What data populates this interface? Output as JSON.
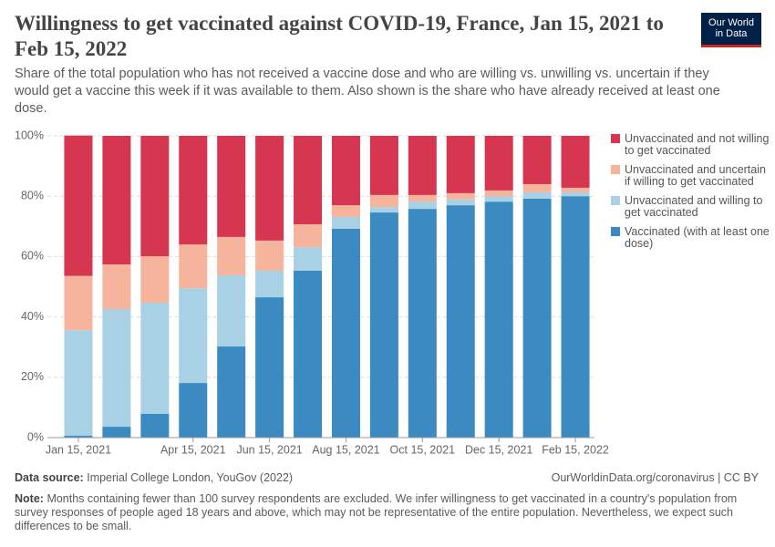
{
  "chart_data": {
    "type": "stacked-bar",
    "title": "Willingness to get vaccinated against COVID-19, France, Jan 15, 2021 to Feb 15, 2022",
    "subtitle": "Share of the total population who has not received a vaccine dose and who are willing vs. unwilling vs. uncertain if they would get a vaccine this week if it was available to them. Also shown is the share who have already received at least one dose.",
    "logo": [
      "Our World",
      "in Data"
    ],
    "categories": [
      "Jan 15, 2021",
      null,
      null,
      "Apr 15, 2021",
      null,
      "Jun 15, 2021",
      null,
      "Aug 15, 2021",
      null,
      "Oct 15, 2021",
      null,
      "Dec 15, 2021",
      null,
      "Feb 15, 2022"
    ],
    "series": [
      {
        "name": "Vaccinated (with at least one dose)",
        "color": "#3b8bc2",
        "values": [
          0.6,
          3.6,
          7.9,
          18.1,
          30.2,
          46.5,
          55.3,
          69.2,
          74.6,
          75.8,
          77,
          78.2,
          79.2,
          80
        ]
      },
      {
        "name": "Unvaccinated and willing to get vaccinated",
        "color": "#a9d1e5",
        "values": [
          35,
          39,
          36.8,
          31.4,
          23.6,
          8.8,
          7.8,
          3.9,
          1.8,
          2.4,
          1.9,
          1.8,
          2.1,
          1.3
        ]
      },
      {
        "name": "Unvaccinated and uncertain if willing to get vaccinated",
        "color": "#f5b49b",
        "values": [
          18,
          14.8,
          15.4,
          14.5,
          12.7,
          10,
          7.6,
          3.9,
          4,
          2.2,
          2.1,
          1.9,
          2.7,
          1.5
        ]
      },
      {
        "name": "Unvaccinated and not willing to get vaccinated",
        "color": "#d6364f",
        "values": [
          46.5,
          42.6,
          39.9,
          36,
          33.5,
          34.7,
          29.3,
          23,
          19.6,
          19.6,
          19,
          18.1,
          16,
          17.2
        ]
      }
    ],
    "ylim": [
      0,
      100
    ],
    "yticks": [
      {
        "value": 0,
        "label": "0%"
      },
      {
        "value": 20,
        "label": "20%"
      },
      {
        "value": 40,
        "label": "40%"
      },
      {
        "value": 60,
        "label": "60%"
      },
      {
        "value": 80,
        "label": "80%"
      },
      {
        "value": 100,
        "label": "100%"
      }
    ],
    "grid": true,
    "legend": "right",
    "source_label": "Data source:",
    "source": "Imperial College London, YouGov (2022)",
    "url": "OurWorldinData.org/coronavirus | CC BY",
    "note_label": "Note:",
    "note": "Months containing fewer than 100 survey respondents are excluded. We infer willingness to get vaccinated in a country's population from survey responses of people aged 18 years and above, which may not be representative of the entire population. Nevertheless, we expect such differences to be small."
  }
}
